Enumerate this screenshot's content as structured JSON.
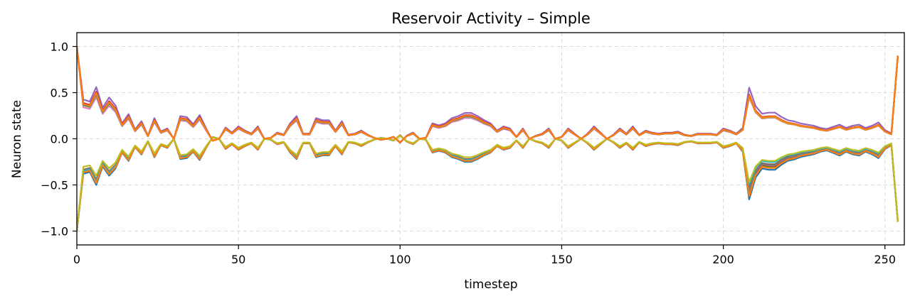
{
  "chart_data": {
    "type": "line",
    "title": "Reservoir Activity – Simple",
    "xlabel": "timestep",
    "ylabel": "Neuron state",
    "xlim": [
      0,
      256
    ],
    "ylim": [
      -1.15,
      1.15
    ],
    "xticks": [
      0,
      50,
      100,
      150,
      200,
      250
    ],
    "yticks": [
      -1.0,
      -0.5,
      0.0,
      0.5,
      1.0
    ],
    "ytick_labels": [
      "−1.0",
      "−0.5",
      "0.0",
      "0.5",
      "1.0"
    ],
    "grid": true,
    "legend": "none",
    "x_start": 0,
    "x_step": 2,
    "envelope_upper": [
      1.0,
      0.38,
      0.36,
      0.5,
      0.3,
      0.4,
      0.32,
      0.15,
      0.24,
      0.09,
      0.17,
      0.03,
      0.2,
      0.07,
      0.1,
      0.0,
      0.22,
      0.21,
      0.14,
      0.23,
      0.1,
      -0.02,
      0.0,
      0.11,
      0.06,
      0.12,
      0.08,
      0.05,
      0.12,
      0.0,
      0.01,
      0.06,
      0.04,
      0.15,
      0.22,
      0.05,
      0.05,
      0.2,
      0.18,
      0.18,
      0.08,
      0.17,
      0.04,
      0.05,
      0.08,
      0.04,
      0.01,
      -0.01,
      0.0,
      0.02,
      -0.04,
      0.03,
      0.06,
      0.0,
      0.01,
      0.15,
      0.13,
      0.15,
      0.2,
      0.22,
      0.25,
      0.25,
      0.22,
      0.18,
      0.15,
      0.08,
      0.12,
      0.1,
      0.02,
      0.1,
      0.0,
      0.03,
      0.05,
      0.1,
      0.0,
      0.02,
      0.1,
      0.05,
      0.0,
      0.05,
      0.12,
      0.06,
      0.0,
      0.04,
      0.1,
      0.05,
      0.12,
      0.04,
      0.08,
      0.06,
      0.05,
      0.06,
      0.06,
      0.07,
      0.04,
      0.03,
      0.05,
      0.05,
      0.05,
      0.04,
      0.1,
      0.08,
      0.05,
      0.1,
      0.47,
      0.3,
      0.23,
      0.24,
      0.24,
      0.2,
      0.17,
      0.16,
      0.14,
      0.13,
      0.12,
      0.1,
      0.09,
      0.11,
      0.13,
      0.1,
      0.12,
      0.13,
      0.1,
      0.12,
      0.15,
      0.08,
      0.05,
      0.9
    ],
    "series": [
      {
        "color": "#1f77b4",
        "sign": -1,
        "amp": 1.0,
        "late_amp": 1.4
      },
      {
        "color": "#ff7f0e",
        "sign": 1,
        "amp": 1.0,
        "late_amp": 1.0
      },
      {
        "color": "#2ca02c",
        "sign": -1,
        "amp": 0.92,
        "late_amp": 1.25
      },
      {
        "color": "#d62728",
        "sign": -1,
        "amp": 0.95,
        "late_amp": 1.22
      },
      {
        "color": "#9467bd",
        "sign": 1,
        "amp": 1.12,
        "late_amp": 1.18
      },
      {
        "color": "#8c564b",
        "sign": -1,
        "amp": 0.88,
        "late_amp": 1.15
      },
      {
        "color": "#e377c2",
        "sign": 1,
        "amp": 0.9,
        "late_amp": 0.95
      },
      {
        "color": "#7f7f7f",
        "sign": -1,
        "amp": 0.9,
        "late_amp": 1.2
      },
      {
        "color": "#bcbd22",
        "sign": 1,
        "amp": 0.95,
        "late_amp": 0.97
      },
      {
        "color": "#17becf",
        "sign": -1,
        "amp": 0.93,
        "late_amp": 1.05
      },
      {
        "color": "#1f77b4",
        "sign": 1,
        "amp": 0.97,
        "late_amp": 1.0
      },
      {
        "color": "#ff7f0e",
        "sign": -1,
        "amp": 0.96,
        "late_amp": 1.32
      },
      {
        "color": "#d62728",
        "sign": 1,
        "amp": 1.02,
        "late_amp": 1.02
      },
      {
        "color": "#bcbd22",
        "sign": -1,
        "amp": 0.8,
        "late_amp": 1.0
      },
      {
        "color": "#ff7f0e",
        "sign": 1,
        "amp": 0.99,
        "late_amp": 1.0
      }
    ]
  }
}
